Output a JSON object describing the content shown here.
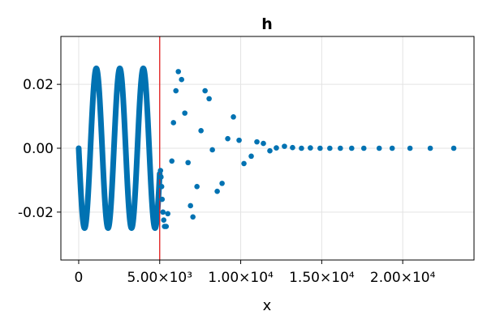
{
  "chart_data": {
    "type": "scatter",
    "title": "h",
    "xlabel": "x",
    "ylabel": "",
    "xlim": [
      -1100,
      24400
    ],
    "ylim": [
      -0.035,
      0.035
    ],
    "x_ticks": [
      {
        "value": 0,
        "label": "0"
      },
      {
        "value": 5000,
        "label": "5.00×10³"
      },
      {
        "value": 10000,
        "label": "1.00×10⁴"
      },
      {
        "value": 15000,
        "label": "1.50×10⁴"
      },
      {
        "value": 20000,
        "label": "2.00×10⁴"
      }
    ],
    "y_ticks": [
      {
        "value": -0.02,
        "label": "-0.02"
      },
      {
        "value": 0.0,
        "label": "0.00"
      },
      {
        "value": 0.02,
        "label": "0.02"
      }
    ],
    "grid": true,
    "marker_color": "#0072b2",
    "vline": {
      "x": 5000,
      "color": "#e31a1c"
    },
    "dense_segment": {
      "x_start": 0,
      "x_end": 5000,
      "function": "-0.025*sin(2*pi*x/1450)",
      "note": "densely sampled, appears as a continuous thick band"
    },
    "series": [
      {
        "values": [
          {
            "x": 5050,
            "y": -0.007
          },
          {
            "x": 5080,
            "y": -0.009
          },
          {
            "x": 5120,
            "y": -0.012
          },
          {
            "x": 5150,
            "y": -0.016
          },
          {
            "x": 5200,
            "y": -0.02
          },
          {
            "x": 5250,
            "y": -0.0225
          },
          {
            "x": 5300,
            "y": -0.0245
          },
          {
            "x": 5400,
            "y": -0.0245
          },
          {
            "x": 5500,
            "y": -0.0205
          },
          {
            "x": 5750,
            "y": -0.004
          },
          {
            "x": 5850,
            "y": 0.008
          },
          {
            "x": 6000,
            "y": 0.018
          },
          {
            "x": 6150,
            "y": 0.024
          },
          {
            "x": 6350,
            "y": 0.0215
          },
          {
            "x": 6550,
            "y": 0.011
          },
          {
            "x": 6750,
            "y": -0.0045
          },
          {
            "x": 6900,
            "y": -0.018
          },
          {
            "x": 7050,
            "y": -0.0215
          },
          {
            "x": 7300,
            "y": -0.012
          },
          {
            "x": 7550,
            "y": 0.0055
          },
          {
            "x": 7800,
            "y": 0.018
          },
          {
            "x": 8050,
            "y": 0.0155
          },
          {
            "x": 8250,
            "y": -0.0005
          },
          {
            "x": 8550,
            "y": -0.0135
          },
          {
            "x": 8850,
            "y": -0.011
          },
          {
            "x": 9200,
            "y": 0.003
          },
          {
            "x": 9550,
            "y": 0.0098
          },
          {
            "x": 9900,
            "y": 0.0025
          },
          {
            "x": 10200,
            "y": -0.0048
          },
          {
            "x": 10650,
            "y": -0.0025
          },
          {
            "x": 11000,
            "y": 0.002
          },
          {
            "x": 11400,
            "y": 0.0015
          },
          {
            "x": 11800,
            "y": -0.0008
          },
          {
            "x": 12200,
            "y": 0.0001
          },
          {
            "x": 12700,
            "y": 0.0006
          },
          {
            "x": 13200,
            "y": 0.0002
          },
          {
            "x": 13750,
            "y": 0.0
          },
          {
            "x": 14300,
            "y": 0.0001
          },
          {
            "x": 14900,
            "y": 0.0
          },
          {
            "x": 15500,
            "y": 0.0
          },
          {
            "x": 16150,
            "y": 0.0
          },
          {
            "x": 16850,
            "y": 0.0
          },
          {
            "x": 17600,
            "y": 0.0
          },
          {
            "x": 18550,
            "y": 0.0
          },
          {
            "x": 19350,
            "y": 0.0
          },
          {
            "x": 20450,
            "y": 0.0
          },
          {
            "x": 21700,
            "y": 0.0
          },
          {
            "x": 23150,
            "y": 0.0
          }
        ]
      }
    ]
  }
}
